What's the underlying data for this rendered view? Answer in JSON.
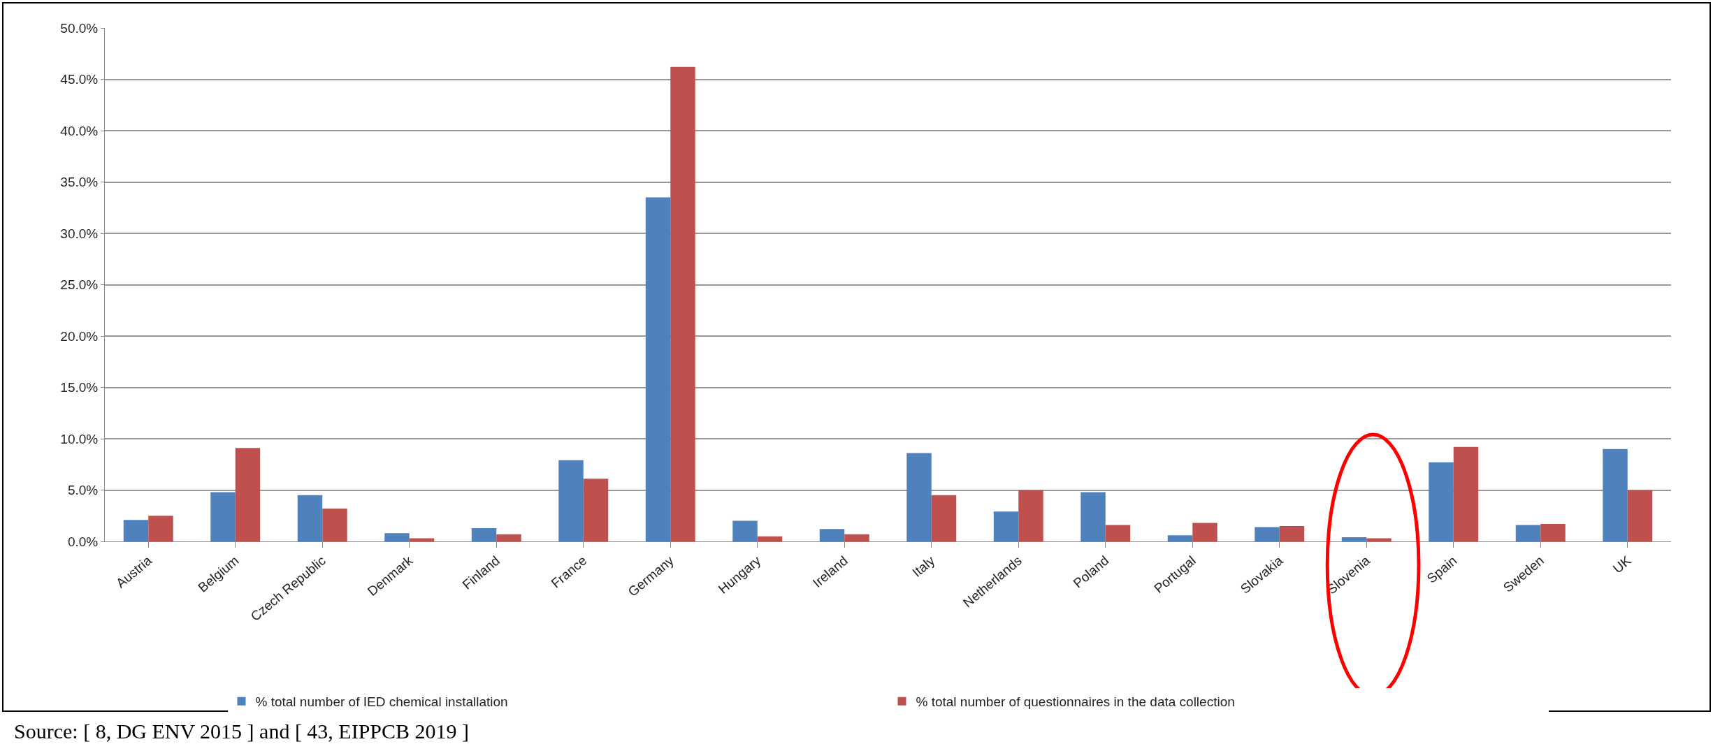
{
  "chart_data": {
    "type": "bar",
    "categories": [
      "Austria",
      "Belgium",
      "Czech Republic",
      "Denmark",
      "Finland",
      "France",
      "Germany",
      "Hungary",
      "Ireland",
      "Italy",
      "Netherlands",
      "Poland",
      "Portugal",
      "Slovakia",
      "Slovenia",
      "Spain",
      "Sweden",
      "UK"
    ],
    "series": [
      {
        "name": "% total number of IED chemical installation",
        "color": "#4f81bd",
        "values": [
          2.1,
          4.8,
          4.5,
          0.8,
          1.3,
          7.9,
          33.5,
          2.0,
          1.2,
          8.6,
          2.9,
          4.8,
          0.6,
          1.4,
          0.4,
          7.7,
          1.6,
          9.0
        ]
      },
      {
        "name": "% total number of questionnaires in the data collection",
        "color": "#c0504d",
        "values": [
          2.5,
          9.1,
          3.2,
          0.3,
          0.7,
          6.1,
          46.2,
          0.5,
          0.7,
          4.5,
          5.0,
          1.6,
          1.8,
          1.5,
          0.3,
          9.2,
          1.7,
          5.0
        ]
      }
    ],
    "ylim": [
      0,
      50
    ],
    "yticks": [
      {
        "value": 0,
        "label": "0.0%"
      },
      {
        "value": 5,
        "label": "5.0%"
      },
      {
        "value": 10,
        "label": "10.0%"
      },
      {
        "value": 15,
        "label": "15.0%"
      },
      {
        "value": 20,
        "label": "20.0%"
      },
      {
        "value": 25,
        "label": "25.0%"
      },
      {
        "value": 30,
        "label": "30.0%"
      },
      {
        "value": 35,
        "label": "35.0%"
      },
      {
        "value": 40,
        "label": "40.0%"
      },
      {
        "value": 45,
        "label": "45.0%"
      },
      {
        "value": 50,
        "label": "50.0%"
      }
    ],
    "grid": "y",
    "legend": "bottom",
    "annotations": [
      "Source: [ 8, DG ENV 2015 ] and [ 43, EIPPCB 2019 ]"
    ]
  }
}
